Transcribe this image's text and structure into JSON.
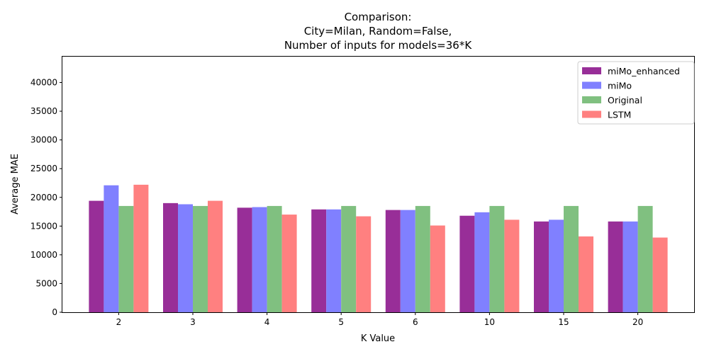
{
  "chart_data": {
    "type": "bar",
    "title_lines": [
      "Comparison:",
      "City=Milan, Random=False,",
      "Number of inputs for models=36*K"
    ],
    "xlabel": "K Value",
    "ylabel": "Average MAE",
    "categories": [
      "2",
      "3",
      "4",
      "5",
      "6",
      "10",
      "15",
      "20"
    ],
    "ylim": [
      0,
      44500
    ],
    "yticks": [
      0,
      5000,
      10000,
      15000,
      20000,
      25000,
      30000,
      35000,
      40000
    ],
    "grid": false,
    "legend_position": "top-right",
    "series": [
      {
        "name": "miMo_enhanced",
        "color": "#982e98",
        "values": [
          19400,
          19000,
          18200,
          17900,
          17800,
          16800,
          15800,
          15800
        ]
      },
      {
        "name": "miMo",
        "color": "#8080ff",
        "values": [
          22100,
          18800,
          18300,
          17900,
          17800,
          17400,
          16100,
          15800
        ]
      },
      {
        "name": "Original",
        "color": "#80c080",
        "values": [
          18500,
          18500,
          18500,
          18500,
          18500,
          18500,
          18500,
          18500
        ]
      },
      {
        "name": "LSTM",
        "color": "#ff8080",
        "values": [
          22200,
          19400,
          17000,
          16700,
          15100,
          16100,
          13200,
          13000
        ]
      }
    ]
  }
}
